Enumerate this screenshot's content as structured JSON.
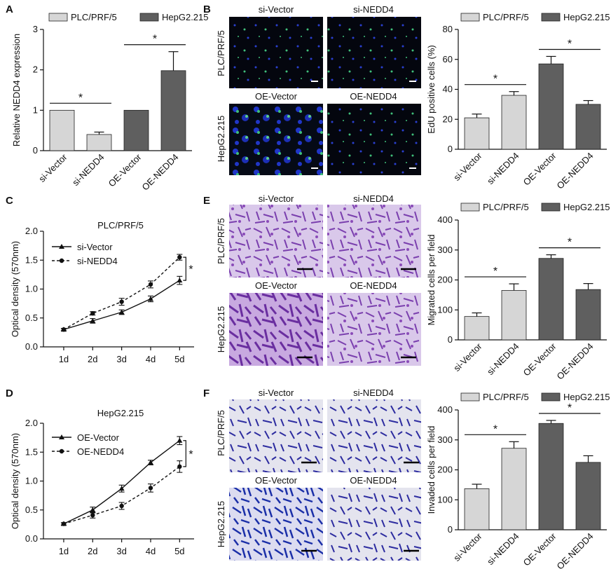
{
  "colors": {
    "light": "#d6d6d6",
    "dark": "#5f5f5f",
    "edge": "#222222",
    "magenta": "#8a4bb8",
    "violet": "#3b3aa8",
    "blue": "#1b2fa8",
    "green": "#3fbf7a"
  },
  "panel_letters": {
    "a": "A",
    "b": "B",
    "c": "C",
    "d": "D",
    "e": "E",
    "f": "F"
  },
  "legend": {
    "s1": "PLC/PRF/5",
    "s2": "HepG2.215"
  },
  "micro": {
    "col1": "si-Vector",
    "col2": "si-NEDD4",
    "col3": "OE-Vector",
    "col4": "OE-NEDD4",
    "row1": "PLC/PRF/5",
    "row2": "HepG2.215"
  },
  "line_titles": {
    "c": "PLC/PRF/5",
    "d": "HepG2.215"
  },
  "chart_data": [
    {
      "id": "A",
      "type": "bar",
      "categories": [
        "si-Vector",
        "si-NEDD4",
        "OE-Vector",
        "OE-NEDD4"
      ],
      "values": [
        1.0,
        0.4,
        1.0,
        1.98
      ],
      "errors": [
        0,
        0.06,
        0,
        0.47
      ],
      "series_of_bar": [
        "PLC/PRF/5",
        "PLC/PRF/5",
        "HepG2.215",
        "HepG2.215"
      ],
      "ylabel": "Relative NEDD4 expression",
      "ylim": [
        0,
        3
      ],
      "yticks": [
        0,
        1,
        2,
        3
      ],
      "sig": [
        {
          "from": 0,
          "to": 1,
          "label": "*"
        },
        {
          "from": 2,
          "to": 3,
          "label": "*"
        }
      ]
    },
    {
      "id": "B",
      "type": "bar",
      "categories": [
        "si-Vector",
        "si-NEDD4",
        "OE-Vector",
        "OE-NEDD4"
      ],
      "values": [
        21,
        36,
        57,
        30
      ],
      "errors": [
        2.5,
        2.5,
        5,
        2.5
      ],
      "series_of_bar": [
        "PLC/PRF/5",
        "PLC/PRF/5",
        "HepG2.215",
        "HepG2.215"
      ],
      "ylabel": "EdU positive cells (%)",
      "ylim": [
        0,
        80
      ],
      "yticks": [
        0,
        20,
        40,
        60,
        80
      ],
      "sig": [
        {
          "from": 0,
          "to": 1,
          "label": "*"
        },
        {
          "from": 2,
          "to": 3,
          "label": "*"
        }
      ]
    },
    {
      "id": "C",
      "type": "line",
      "title": "PLC/PRF/5",
      "x": [
        "1d",
        "2d",
        "3d",
        "4d",
        "5d"
      ],
      "series": [
        {
          "name": "si-Vector",
          "values": [
            0.3,
            0.45,
            0.6,
            0.83,
            1.15
          ],
          "errors": [
            0.02,
            0.04,
            0.04,
            0.05,
            0.07
          ],
          "dashed": false,
          "marker": "triangle"
        },
        {
          "name": "si-NEDD4",
          "values": [
            0.3,
            0.58,
            0.78,
            1.08,
            1.55
          ],
          "errors": [
            0.02,
            0.03,
            0.06,
            0.06,
            0.05
          ],
          "dashed": true,
          "marker": "circle"
        }
      ],
      "ylabel": "Optical density (570nm)",
      "ylim": [
        0,
        2.0
      ],
      "yticks": [
        "0.0",
        "0.5",
        "1.0",
        "1.5",
        "2.0"
      ],
      "sig": "*"
    },
    {
      "id": "D",
      "type": "line",
      "title": "HepG2.215",
      "x": [
        "1d",
        "2d",
        "3d",
        "4d",
        "5d"
      ],
      "series": [
        {
          "name": "OE-Vector",
          "values": [
            0.26,
            0.5,
            0.87,
            1.32,
            1.7
          ],
          "errors": [
            0.02,
            0.05,
            0.06,
            0.04,
            0.07
          ],
          "dashed": false,
          "marker": "triangle"
        },
        {
          "name": "OE-NEDD4",
          "values": [
            0.26,
            0.41,
            0.57,
            0.88,
            1.25
          ],
          "errors": [
            0.02,
            0.05,
            0.06,
            0.07,
            0.1
          ],
          "dashed": true,
          "marker": "circle"
        }
      ],
      "ylabel": "Optical density (570nm)",
      "ylim": [
        0,
        2.0
      ],
      "yticks": [
        "0.0",
        "0.5",
        "1.0",
        "1.5",
        "2.0"
      ],
      "sig": "*"
    },
    {
      "id": "E",
      "type": "bar",
      "categories": [
        "si-Vector",
        "si-NEDD4",
        "OE-Vector",
        "OE-NEDD4"
      ],
      "values": [
        78,
        165,
        272,
        168
      ],
      "errors": [
        12,
        22,
        12,
        20
      ],
      "series_of_bar": [
        "PLC/PRF/5",
        "PLC/PRF/5",
        "HepG2.215",
        "HepG2.215"
      ],
      "ylabel": "Migrated cells per field",
      "ylim": [
        0,
        400
      ],
      "yticks": [
        0,
        100,
        200,
        300,
        400
      ],
      "sig": [
        {
          "from": 0,
          "to": 1,
          "label": "*"
        },
        {
          "from": 2,
          "to": 3,
          "label": "*"
        }
      ]
    },
    {
      "id": "F",
      "type": "bar",
      "categories": [
        "si-Vector",
        "si-NEDD4",
        "OE-Vector",
        "OE-NEDD4"
      ],
      "values": [
        137,
        272,
        355,
        225
      ],
      "errors": [
        15,
        22,
        10,
        22
      ],
      "series_of_bar": [
        "PLC/PRF/5",
        "PLC/PRF/5",
        "HepG2.215",
        "HepG2.215"
      ],
      "ylabel": "Invaded cells per field",
      "ylim": [
        0,
        400
      ],
      "yticks": [
        0,
        100,
        200,
        300,
        400
      ],
      "sig": [
        {
          "from": 0,
          "to": 1,
          "label": "*"
        },
        {
          "from": 2,
          "to": 3,
          "label": "*"
        }
      ]
    }
  ]
}
